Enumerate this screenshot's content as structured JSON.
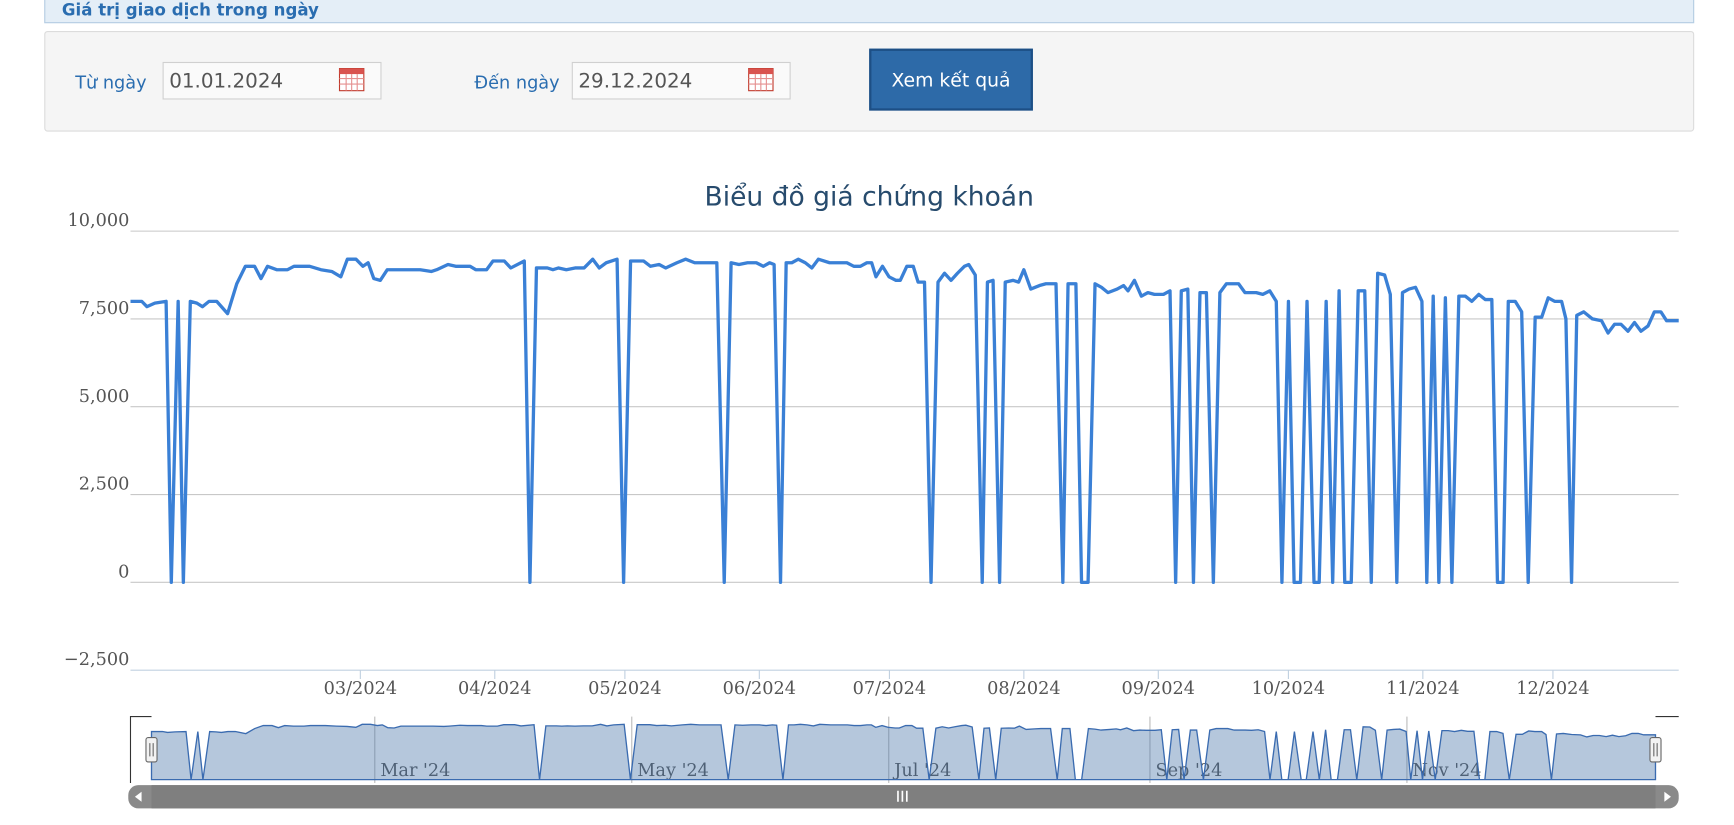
{
  "header": {
    "title": "Giá trị giao dịch trong ngày"
  },
  "form": {
    "from_label": "Từ ngày",
    "from_value": "01.01.2024",
    "to_label": "Đến ngày",
    "to_value": "29.12.2024",
    "button": "Xem kết quả"
  },
  "chart_data": {
    "type": "line",
    "title": "Biểu đồ giá chứng khoán",
    "color": "#3a80d6",
    "grid": true,
    "xlim": [
      8,
      365
    ],
    "xticks": [
      {
        "value": 61,
        "label": "03/2024"
      },
      {
        "value": 92,
        "label": "04/2024"
      },
      {
        "value": 122,
        "label": "05/2024"
      },
      {
        "value": 153,
        "label": "06/2024"
      },
      {
        "value": 183,
        "label": "07/2024"
      },
      {
        "value": 214,
        "label": "08/2024"
      },
      {
        "value": 245,
        "label": "09/2024"
      },
      {
        "value": 275,
        "label": "10/2024"
      },
      {
        "value": 306,
        "label": "11/2024"
      },
      {
        "value": 336,
        "label": "12/2024"
      }
    ],
    "ylim": [
      -2500,
      10000
    ],
    "yticks": [
      {
        "value": -2500,
        "label": "−2,500"
      },
      0,
      {
        "value": 2500,
        "label": "2,500"
      },
      {
        "value": 5000,
        "label": "5,000"
      },
      {
        "value": 7500,
        "label": "7,500"
      },
      {
        "value": 10000,
        "label": "10,000"
      }
    ],
    "navigator_xticks": [
      {
        "value": 61,
        "label": "Mar '24"
      },
      {
        "value": 122,
        "label": "May '24"
      },
      {
        "value": 183,
        "label": "Jul '24"
      },
      {
        "value": 245,
        "label": "Sep '24"
      },
      {
        "value": 306,
        "label": "Nov '24"
      }
    ],
    "x": [
      8.0,
      10.6,
      11.8,
      13.6,
      16.2,
      17.4,
      19.0,
      20.2,
      21.8,
      23.3,
      24.6,
      26.1,
      27.9,
      30.4,
      32.5,
      34.5,
      36.6,
      38.1,
      39.6,
      41.7,
      44.2,
      45.7,
      49.3,
      51.9,
      54.4,
      56.5,
      58.0,
      60.0,
      61.6,
      62.8,
      64.1,
      65.6,
      67.2,
      69.7,
      72.3,
      74.8,
      77.4,
      78.6,
      81.2,
      83.0,
      86.3,
      87.6,
      90.1,
      91.6,
      94.2,
      95.7,
      98.8,
      100.1,
      101.6,
      104.1,
      105.4,
      106.7,
      108.5,
      110.5,
      112.6,
      114.6,
      116.1,
      117.7,
      120.2,
      121.7,
      123.3,
      126.3,
      127.9,
      129.9,
      131.4,
      134.0,
      136.0,
      138.1,
      140.6,
      143.2,
      144.9,
      146.5,
      148.3,
      150.3,
      152.3,
      153.9,
      155.4,
      156.4,
      157.9,
      159.2,
      160.5,
      162.0,
      163.6,
      165.1,
      166.6,
      169.2,
      171.7,
      173.2,
      174.8,
      176.3,
      177.8,
      178.9,
      179.9,
      181.4,
      182.9,
      184.5,
      185.5,
      187.0,
      188.5,
      189.6,
      191.1,
      192.6,
      194.2,
      195.7,
      197.2,
      198.7,
      200.3,
      201.3,
      202.8,
      204.4,
      205.6,
      206.9,
      208.4,
      209.7,
      211.5,
      212.8,
      214.0,
      215.6,
      217.6,
      219.1,
      221.4,
      223.0,
      224.2,
      226.0,
      227.3,
      228.8,
      230.4,
      231.9,
      233.4,
      235.5,
      237.0,
      238.0,
      239.5,
      241.1,
      242.6,
      244.1,
      246.2,
      247.7,
      249.0,
      250.3,
      251.8,
      253.1,
      254.6,
      256.1,
      257.7,
      259.2,
      260.7,
      263.5,
      265.0,
      267.6,
      269.1,
      270.7,
      272.2,
      273.5,
      275.0,
      276.3,
      277.8,
      279.3,
      280.9,
      282.1,
      283.7,
      285.2,
      286.7,
      288.0,
      289.5,
      291.1,
      292.6,
      294.1,
      295.6,
      297.2,
      298.5,
      300.0,
      301.3,
      302.8,
      304.3,
      305.8,
      306.9,
      308.4,
      309.7,
      311.2,
      312.7,
      314.3,
      315.8,
      317.3,
      318.9,
      320.4,
      321.9,
      323.2,
      324.5,
      325.7,
      327.3,
      328.8,
      330.3,
      331.9,
      333.4,
      334.9,
      336.4,
      338.0,
      339.0,
      340.3,
      341.5,
      343.1,
      345.1,
      347.2,
      348.7,
      350.2,
      351.7,
      353.3,
      354.8,
      356.3,
      357.9,
      359.4,
      360.9,
      362.2,
      365.0
    ],
    "values": [
      8000,
      8000,
      7850,
      7950,
      8000,
      0,
      8000,
      0,
      8000,
      7950,
      7850,
      8000,
      8000,
      7650,
      8500,
      9000,
      9000,
      8650,
      9000,
      8900,
      8900,
      9000,
      9000,
      8900,
      8850,
      8700,
      9200,
      9200,
      9000,
      9100,
      8650,
      8600,
      8900,
      8900,
      8900,
      8900,
      8850,
      8900,
      9050,
      9000,
      9000,
      8900,
      8900,
      9150,
      9150,
      8950,
      9150,
      0,
      8950,
      8950,
      8900,
      8950,
      8900,
      8950,
      8950,
      9200,
      8950,
      9100,
      9200,
      0,
      9150,
      9150,
      9000,
      9050,
      8950,
      9100,
      9200,
      9100,
      9100,
      9100,
      0,
      9100,
      9050,
      9100,
      9100,
      9000,
      9100,
      9050,
      0,
      9100,
      9100,
      9200,
      9100,
      8950,
      9200,
      9100,
      9100,
      9100,
      9000,
      9000,
      9100,
      9100,
      8700,
      9000,
      8700,
      8600,
      8600,
      9000,
      9000,
      8550,
      8550,
      0,
      8550,
      8800,
      8600,
      8800,
      9000,
      9050,
      8750,
      0,
      8550,
      8600,
      0,
      8550,
      8600,
      8550,
      8900,
      8350,
      8450,
      8500,
      8500,
      0,
      8500,
      8500,
      0,
      0,
      8500,
      8400,
      8250,
      8350,
      8450,
      8300,
      8600,
      8150,
      8250,
      8200,
      8200,
      8300,
      0,
      8300,
      8350,
      0,
      8250,
      8250,
      0,
      8250,
      8500,
      8500,
      8250,
      8250,
      8200,
      8300,
      8000,
      0,
      8000,
      0,
      0,
      8000,
      0,
      0,
      8000,
      0,
      8300,
      0,
      0,
      8300,
      8300,
      0,
      8800,
      8750,
      8200,
      0,
      8250,
      8350,
      8400,
      8000,
      0,
      8150,
      0,
      8100,
      0,
      8150,
      8150,
      8000,
      8200,
      8050,
      8050,
      0,
      0,
      8000,
      8000,
      7700,
      0,
      7550,
      7550,
      8100,
      8000,
      8000,
      7500,
      0,
      7600,
      7700,
      7500,
      7450,
      7100,
      7350,
      7350,
      7150,
      7400,
      7150,
      7300,
      7700,
      7700,
      7450,
      7450
    ]
  }
}
